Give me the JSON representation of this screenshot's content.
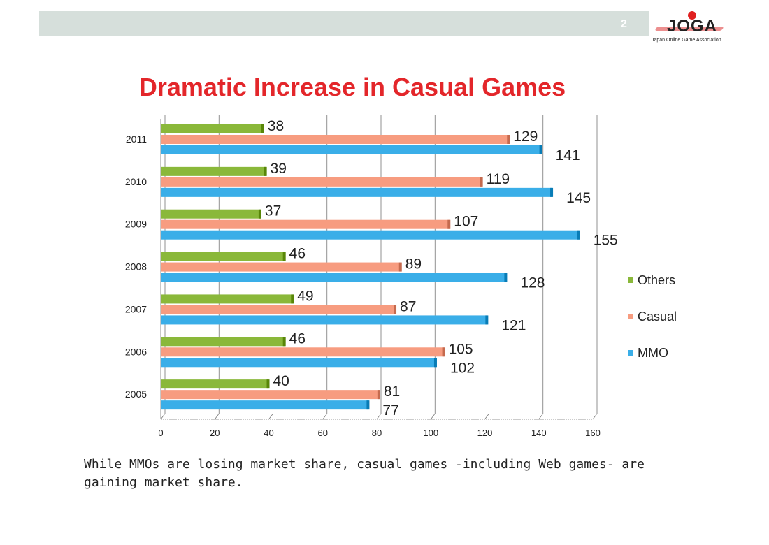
{
  "header": {
    "page_number": "2",
    "logo_text": "JOGA",
    "logo_subtitle": "Japan Online Game Association"
  },
  "chart_data": {
    "type": "bar",
    "orientation": "horizontal",
    "title": "Dramatic Increase in Casual Games",
    "categories": [
      "2011",
      "2010",
      "2009",
      "2008",
      "2007",
      "2006",
      "2005"
    ],
    "series": [
      {
        "name": "Others",
        "color": "#8ab83a",
        "values": [
          38,
          39,
          37,
          46,
          49,
          46,
          40
        ]
      },
      {
        "name": "Casual",
        "color": "#f79c80",
        "values": [
          129,
          119,
          107,
          89,
          87,
          105,
          81
        ]
      },
      {
        "name": "MMO",
        "color": "#3aaee8",
        "values": [
          141,
          145,
          155,
          128,
          121,
          102,
          77
        ]
      }
    ],
    "xlim": [
      0,
      160
    ],
    "xticks": [
      "0",
      "20",
      "40",
      "60",
      "80",
      "100",
      "120",
      "140",
      "160"
    ],
    "grid": true,
    "legend": "right",
    "legend_entries": [
      "Others",
      "Casual",
      "MMO"
    ]
  },
  "caption": "While MMOs are losing market share, casual games -including Web games- are gaining market share."
}
